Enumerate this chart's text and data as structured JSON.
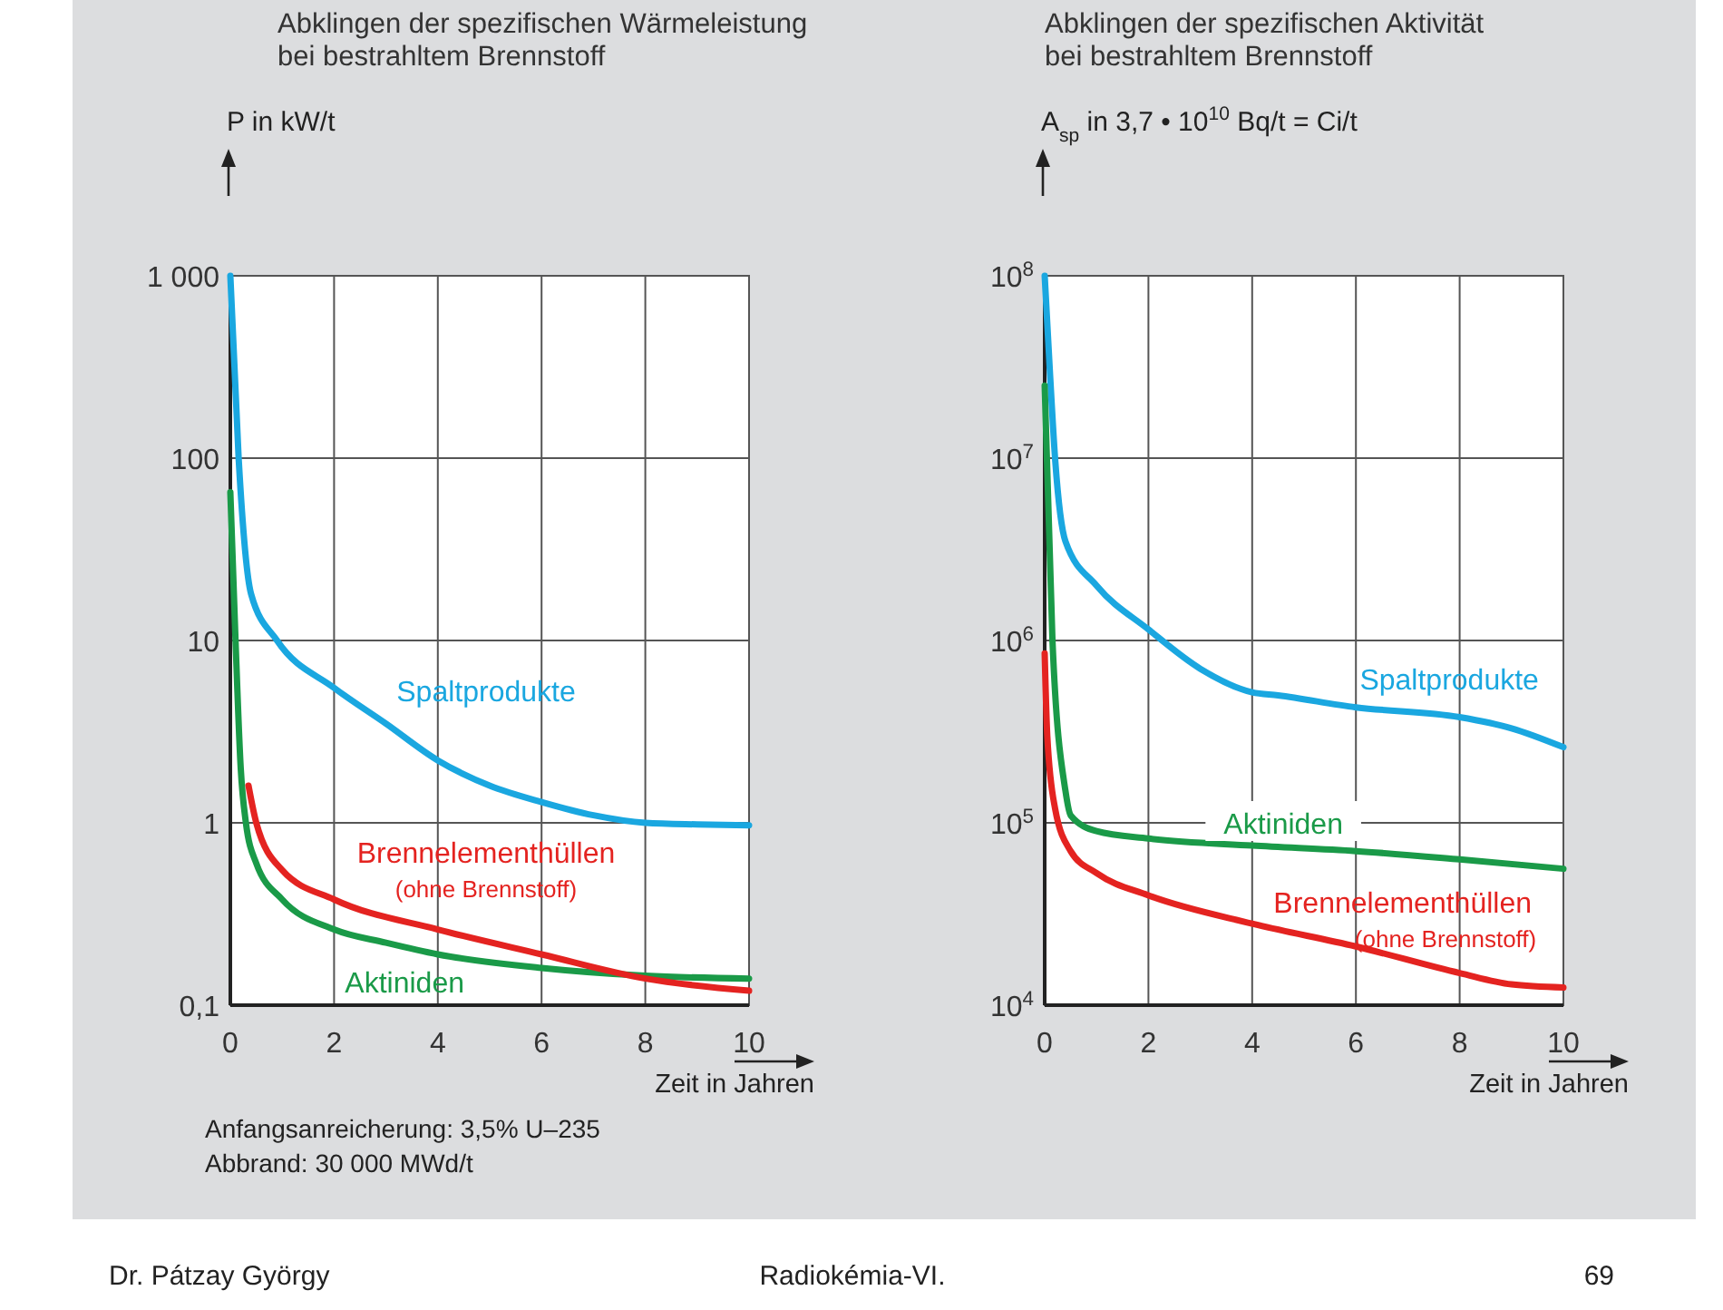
{
  "chart_data": [
    {
      "type": "line",
      "title": "Abklingen der spezifischen Wärmeleistung\nbei bestrahltem Brennstoff",
      "ylabel": "P in kW/t",
      "xlabel": "Zeit in Jahren",
      "log": "y",
      "grid": true,
      "xlim": [
        0,
        10
      ],
      "xticks": [
        0,
        2,
        4,
        6,
        8,
        10
      ],
      "ylim": [
        0.1,
        1000
      ],
      "yticks": [
        {
          "value": 0.1,
          "label": "0,1"
        },
        1,
        10,
        100,
        {
          "value": 1000,
          "label": "1 000"
        }
      ],
      "series": [
        {
          "name": "Spaltprodukte",
          "color": "#1aa7e0",
          "x": [
            0,
            0.16,
            0.4,
            0.9,
            2,
            3,
            4,
            5,
            6,
            7,
            8,
            9,
            10
          ],
          "values": [
            1000,
            100,
            18,
            10,
            5.5,
            3.5,
            2.2,
            1.6,
            1.3,
            1.1,
            1.0,
            0.98,
            0.97
          ]
        },
        {
          "name": "Aktiniden",
          "color": "#1a9a48",
          "x": [
            0,
            0.1,
            0.2,
            0.3,
            0.5,
            1,
            2,
            3,
            4,
            6,
            8,
            10
          ],
          "values": [
            65,
            10,
            2,
            1,
            0.6,
            0.38,
            0.26,
            0.22,
            0.19,
            0.16,
            0.145,
            0.14
          ]
        },
        {
          "name": "Brennelementhüllen\n(ohne Brennstoff)",
          "color": "#e42320",
          "x": [
            0.35,
            0.5,
            1,
            2,
            4,
            6,
            8,
            10
          ],
          "values": [
            1.6,
            1.0,
            0.55,
            0.38,
            0.26,
            0.19,
            0.14,
            0.12
          ]
        }
      ],
      "annotations": [
        "Anfangsanreicherung: 3,5% U–235",
        "Abbrand: 30 000 MWd/t",
        "Dr. Pátzay György",
        "Radiokémia-VI.",
        "69"
      ]
    },
    {
      "type": "line",
      "title": "Abklingen der spezifischen Aktivität\nbei bestrahltem Brennstoff",
      "ylabel": "A$_{sp}$ in 3,7 • 10$^{10}$ Bq/t = Ci/t",
      "xlabel": "Zeit in Jahren",
      "log": "y",
      "grid": true,
      "xlim": [
        0,
        10
      ],
      "xticks": [
        0,
        2,
        4,
        6,
        8,
        10
      ],
      "ylim": [
        10000,
        100000000
      ],
      "yticks": [
        {
          "value": 10000,
          "label": "10$^{4}$"
        },
        {
          "value": 100000,
          "label": "10$^{5}$"
        },
        {
          "value": 1000000,
          "label": "10$^{6}$"
        },
        {
          "value": 10000000,
          "label": "10$^{7}$"
        },
        {
          "value": 100000000,
          "label": "10$^{8}$"
        }
      ],
      "series": [
        {
          "name": "Spaltprodukte",
          "color": "#1aa7e0",
          "x": [
            0,
            0.1,
            0.2,
            0.4,
            1,
            2,
            3,
            4,
            4.5,
            6,
            8,
            9,
            10
          ],
          "values": [
            100000000,
            30000000,
            10000000,
            3500000,
            2000000,
            1150000,
            700000,
            520000,
            500000,
            430000,
            380000,
            330000,
            260000
          ]
        },
        {
          "name": "Aktiniden",
          "color": "#1a9a48",
          "x": [
            0,
            0.15,
            0.4,
            0.5,
            1,
            2,
            4,
            6,
            8,
            10
          ],
          "values": [
            25000000,
            1000000,
            150000,
            110000,
            90000,
            82000,
            75000,
            70000,
            63000,
            56000
          ]
        },
        {
          "name": "Brennelementhüllen\n(ohne Brennstoff)",
          "color": "#e42320",
          "x": [
            0,
            0.05,
            0.2,
            0.5,
            1,
            2,
            4,
            6,
            8,
            9,
            10
          ],
          "values": [
            850000,
            300000,
            120000,
            70000,
            53000,
            40000,
            28000,
            21000,
            15000,
            13000,
            12500
          ]
        }
      ]
    }
  ]
}
